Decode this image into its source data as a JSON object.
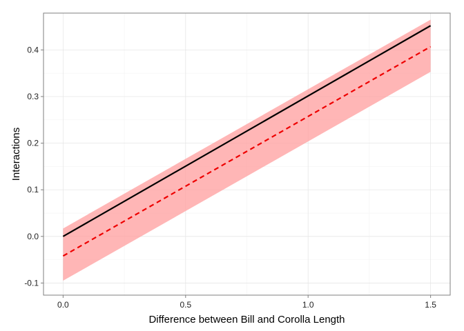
{
  "chart_data": {
    "type": "line",
    "title": "",
    "xlabel": "Difference between Bill and Corolla Length",
    "ylabel": "Interactions",
    "xlim": [
      -0.08,
      1.58
    ],
    "ylim": [
      -0.126,
      0.479
    ],
    "x_ticks": [
      {
        "value": 0.0,
        "label": "0.0"
      },
      {
        "value": 0.5,
        "label": "0.5"
      },
      {
        "value": 1.0,
        "label": "1.0"
      },
      {
        "value": 1.5,
        "label": "1.5"
      }
    ],
    "y_ticks": [
      {
        "value": -0.1,
        "label": "-0.1"
      },
      {
        "value": 0.0,
        "label": "0.0"
      },
      {
        "value": 0.1,
        "label": "0.1"
      },
      {
        "value": 0.2,
        "label": "0.2"
      },
      {
        "value": 0.3,
        "label": "0.3"
      },
      {
        "value": 0.4,
        "label": "0.4"
      }
    ],
    "grid": true,
    "series": [
      {
        "style": "solid",
        "color": "#000000",
        "x": [
          0.0,
          1.5
        ],
        "y": [
          0.0,
          0.452
        ]
      },
      {
        "style": "dashed",
        "color": "#ee0000",
        "x": [
          0.0,
          1.5
        ],
        "y": [
          -0.042,
          0.407
        ]
      }
    ],
    "band": {
      "color": "#ff9d9d",
      "opacity": 0.75,
      "x": [
        0.0,
        1.5
      ],
      "lower": [
        -0.095,
        0.353
      ],
      "upper": [
        0.017,
        0.465
      ]
    }
  }
}
